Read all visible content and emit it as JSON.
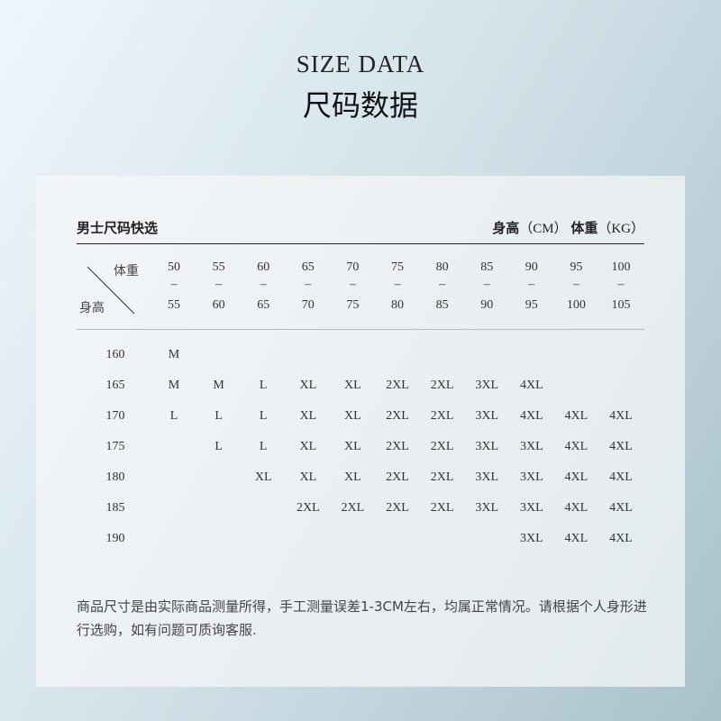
{
  "title": {
    "en": "SIZE DATA",
    "cn": "尺码数据"
  },
  "table": {
    "heading": "男士尺码快选",
    "units": {
      "height_label": "身高",
      "height_unit": "（CM）",
      "weight_label": "体重",
      "weight_unit": "（KG）"
    },
    "corner": {
      "weight": "体重",
      "height": "身高"
    },
    "weight_ranges": [
      {
        "from": "50",
        "to": "55"
      },
      {
        "from": "55",
        "to": "60"
      },
      {
        "from": "60",
        "to": "65"
      },
      {
        "from": "65",
        "to": "70"
      },
      {
        "from": "70",
        "to": "75"
      },
      {
        "from": "75",
        "to": "80"
      },
      {
        "from": "80",
        "to": "85"
      },
      {
        "from": "85",
        "to": "90"
      },
      {
        "from": "90",
        "to": "95"
      },
      {
        "from": "95",
        "to": "100"
      },
      {
        "from": "100",
        "to": "105"
      }
    ],
    "range_separator": "–",
    "rows": [
      {
        "height": "160",
        "sizes": [
          "M",
          "",
          "",
          "",
          "",
          "",
          "",
          "",
          "",
          "",
          ""
        ]
      },
      {
        "height": "165",
        "sizes": [
          "M",
          "M",
          "L",
          "XL",
          "XL",
          "2XL",
          "2XL",
          "3XL",
          "4XL",
          "",
          ""
        ]
      },
      {
        "height": "170",
        "sizes": [
          "L",
          "L",
          "L",
          "XL",
          "XL",
          "2XL",
          "2XL",
          "3XL",
          "4XL",
          "4XL",
          "4XL"
        ]
      },
      {
        "height": "175",
        "sizes": [
          "",
          "L",
          "L",
          "XL",
          "XL",
          "2XL",
          "2XL",
          "3XL",
          "3XL",
          "4XL",
          "4XL"
        ]
      },
      {
        "height": "180",
        "sizes": [
          "",
          "",
          "XL",
          "XL",
          "XL",
          "2XL",
          "2XL",
          "3XL",
          "3XL",
          "4XL",
          "4XL"
        ]
      },
      {
        "height": "185",
        "sizes": [
          "",
          "",
          "",
          "2XL",
          "2XL",
          "2XL",
          "2XL",
          "3XL",
          "3XL",
          "4XL",
          "4XL"
        ]
      },
      {
        "height": "190",
        "sizes": [
          "",
          "",
          "",
          "",
          "",
          "",
          "",
          "",
          "3XL",
          "4XL",
          "4XL"
        ]
      }
    ]
  },
  "note": "商品尺寸是由实际商品测量所得，手工测量误差1-3CM左右，均属正常情况。请根据个人身形进行选购，如有问题可质询客服."
}
